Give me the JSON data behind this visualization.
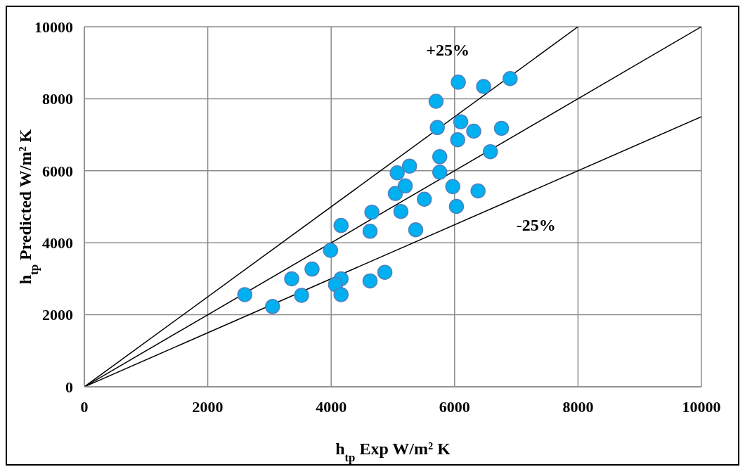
{
  "chart_data": {
    "type": "scatter",
    "xlabel": "h$_{tp}$ Exp W/m² K",
    "ylabel": "h$_{tp}$ Predicted W/m² K",
    "xlim": [
      0,
      10000
    ],
    "ylim": [
      0,
      10000
    ],
    "xticks": [
      0,
      2000,
      4000,
      6000,
      8000,
      10000
    ],
    "yticks": [
      0,
      2000,
      4000,
      6000,
      8000,
      10000
    ],
    "grid": true,
    "marker": "circle",
    "series": [
      {
        "color": "#00b0f0",
        "x": [
          2600,
          3050,
          3360,
          3690,
          3520,
          3990,
          4160,
          4070,
          4160,
          4160,
          4630,
          4870,
          4630,
          4660,
          5130,
          5370,
          5510,
          5040,
          5200,
          5070,
          5270,
          5760,
          5760,
          5970,
          6030,
          6380,
          5720,
          5700,
          6050,
          6100,
          6310,
          6060,
          6470,
          6580,
          6760,
          6900
        ],
        "values": [
          2560,
          2230,
          3000,
          3270,
          2540,
          3790,
          3000,
          2840,
          2560,
          4480,
          2940,
          3180,
          4320,
          4850,
          4870,
          4360,
          5210,
          5370,
          5580,
          5940,
          6130,
          5960,
          6390,
          5560,
          5010,
          5440,
          7200,
          7930,
          6860,
          7360,
          7100,
          8460,
          8340,
          6530,
          7180,
          8560
        ]
      },
      {
        "type": "line",
        "color": "#000000",
        "marker": "none",
        "x": [
          0,
          8000
        ],
        "values": [
          0,
          10000
        ]
      },
      {
        "type": "line",
        "color": "#000000",
        "marker": "none",
        "x": [
          0,
          10000
        ],
        "values": [
          0,
          10000
        ]
      },
      {
        "type": "line",
        "color": "#000000",
        "marker": "none",
        "x": [
          0,
          10000
        ],
        "values": [
          0,
          7500
        ]
      }
    ],
    "annotations": [
      "+25%",
      "-25%"
    ]
  }
}
